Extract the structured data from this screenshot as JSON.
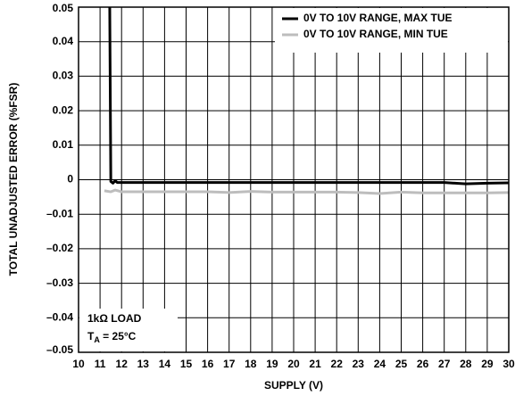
{
  "chart_data": {
    "type": "line",
    "xlabel": "SUPPLY (V)",
    "ylabel": "TOTAL UNADJUSTED ERROR (%FSR)",
    "xlim": [
      10,
      30
    ],
    "xticks": [
      10,
      11,
      12,
      13,
      14,
      15,
      16,
      17,
      18,
      19,
      20,
      21,
      22,
      23,
      24,
      25,
      26,
      27,
      28,
      29,
      30
    ],
    "ylim": [
      -0.05,
      0.05
    ],
    "yticks": [
      {
        "value": -0.05,
        "label": "–0.05"
      },
      {
        "value": -0.04,
        "label": "–0.04"
      },
      {
        "value": -0.03,
        "label": "–0.03"
      },
      {
        "value": -0.02,
        "label": "–0.02"
      },
      {
        "value": -0.01,
        "label": "–0.01"
      },
      0,
      0.01,
      0.02,
      0.03,
      0.04,
      0.05
    ],
    "grid": true,
    "legend": "upper right",
    "series": [
      {
        "name": "0V TO 10V RANGE, MAX TUE",
        "color": "#000000",
        "x": [
          11.45,
          11.5,
          11.6,
          11.7,
          11.8,
          12,
          13,
          14,
          15,
          16,
          17,
          18,
          19,
          20,
          21,
          22,
          23,
          24,
          25,
          26,
          27,
          28,
          29,
          30
        ],
        "values": [
          0.05,
          -0.0005,
          -0.001,
          -0.0003,
          -0.0008,
          -0.0008,
          -0.0008,
          -0.0008,
          -0.0008,
          -0.0008,
          -0.0008,
          -0.0008,
          -0.0008,
          -0.0008,
          -0.0008,
          -0.0008,
          -0.0008,
          -0.0008,
          -0.0008,
          -0.0008,
          -0.0008,
          -0.0012,
          -0.001,
          -0.0009
        ]
      },
      {
        "name": "0V TO 10V RANGE, MIN TUE",
        "color": "#bdbdbd",
        "x": [
          11.2,
          11.5,
          11.7,
          12,
          13,
          14,
          15,
          16,
          17,
          18,
          19,
          20,
          21,
          22,
          23,
          24,
          25,
          26,
          27,
          28,
          29,
          30
        ],
        "values": [
          -0.0032,
          -0.0035,
          -0.003,
          -0.0035,
          -0.0035,
          -0.0035,
          -0.0035,
          -0.0035,
          -0.0037,
          -0.0034,
          -0.0036,
          -0.0036,
          -0.0036,
          -0.0036,
          -0.0037,
          -0.004,
          -0.0036,
          -0.0038,
          -0.0038,
          -0.0038,
          -0.0038,
          -0.0037
        ]
      }
    ],
    "annotations": [
      {
        "text": "1kΩ LOAD"
      },
      {
        "text": "T",
        "sub": "A",
        "rest": " = 25°C"
      }
    ]
  }
}
